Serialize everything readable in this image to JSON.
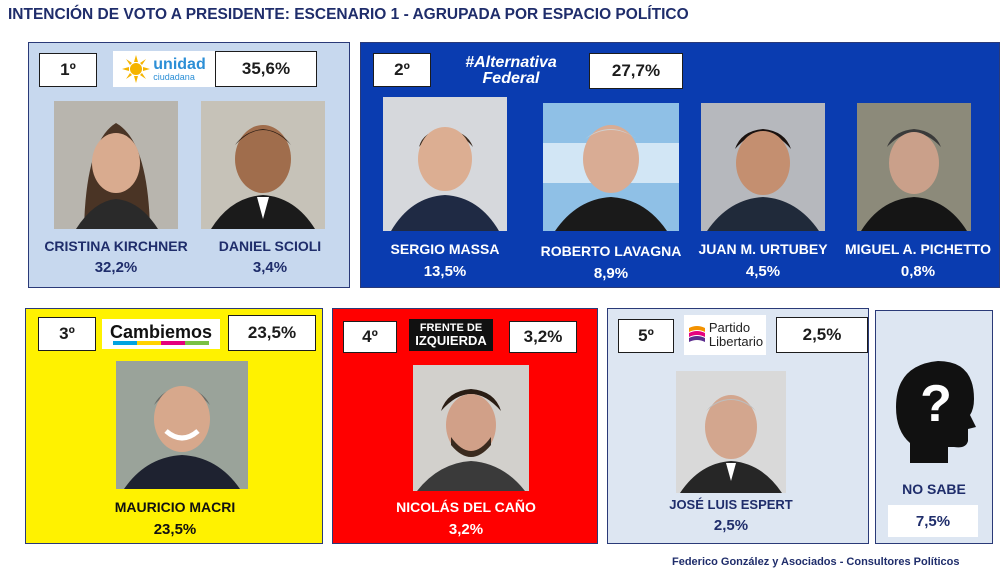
{
  "title": "INTENCIÓN DE VOTO A PRESIDENTE: ESCENARIO 1 - AGRUPADA POR ESPACIO POLÍTICO",
  "footer": "Federico González y Asociados - Consultores Políticos",
  "colors": {
    "unidad_bg": "#c7d8ee",
    "alternativa_bg": "#0a3cb0",
    "cambiemos_bg": "#fff200",
    "frente_bg": "#ff0000",
    "libertario_bg": "#dde6f2",
    "nosabe_bg": "#dde6f2"
  },
  "groups": [
    {
      "rank": "1º",
      "logo_text": "unidad",
      "logo_sub": "ciudadana",
      "logo_icon": "sun-icon",
      "percent": "35,6%"
    },
    {
      "rank": "2º",
      "logo_text": "#Alternativa",
      "logo_sub": "Federal",
      "percent": "27,7%"
    },
    {
      "rank": "3º",
      "logo_text": "Cambiemos",
      "percent": "23,5%"
    },
    {
      "rank": "4º",
      "logo_text": "FRENTE DE",
      "logo_sub": "IZQUIERDA",
      "percent": "3,2%"
    },
    {
      "rank": "5º",
      "logo_text": "Partido",
      "logo_sub": "Libertario",
      "logo_icon": "flag-icon",
      "percent": "2,5%"
    }
  ],
  "candidates": [
    {
      "name": "CRISTINA KIRCHNER",
      "pct": "32,2%"
    },
    {
      "name": "DANIEL SCIOLI",
      "pct": "3,4%"
    },
    {
      "name": "SERGIO MASSA",
      "pct": "13,5%"
    },
    {
      "name": "ROBERTO LAVAGNA",
      "pct": "8,9%"
    },
    {
      "name": "JUAN M. URTUBEY",
      "pct": "4,5%"
    },
    {
      "name": "MIGUEL A. PICHETTO",
      "pct": "0,8%"
    },
    {
      "name": "MAURICIO MACRI",
      "pct": "23,5%"
    },
    {
      "name": "NICOLÁS DEL CAÑO",
      "pct": "3,2%"
    },
    {
      "name": "JOSÉ LUIS ESPERT",
      "pct": "2,5%"
    }
  ],
  "no_sabe": {
    "label": "NO SABE",
    "pct": "7,5%",
    "icon": "question-head-icon"
  },
  "chart_data": {
    "type": "bar",
    "title": "INTENCIÓN DE VOTO A PRESIDENTE: ESCENARIO 1 - AGRUPADA POR ESPACIO POLÍTICO",
    "groups": [
      {
        "name": "Unidad Ciudadana",
        "total": 35.6,
        "candidates": [
          [
            "CRISTINA KIRCHNER",
            32.2
          ],
          [
            "DANIEL SCIOLI",
            3.4
          ]
        ]
      },
      {
        "name": "Alternativa Federal",
        "total": 27.7,
        "candidates": [
          [
            "SERGIO MASSA",
            13.5
          ],
          [
            "ROBERTO LAVAGNA",
            8.9
          ],
          [
            "JUAN M. URTUBEY",
            4.5
          ],
          [
            "MIGUEL A. PICHETTO",
            0.8
          ]
        ]
      },
      {
        "name": "Cambiemos",
        "total": 23.5,
        "candidates": [
          [
            "MAURICIO MACRI",
            23.5
          ]
        ]
      },
      {
        "name": "Frente de Izquierda",
        "total": 3.2,
        "candidates": [
          [
            "NICOLÁS DEL CAÑO",
            3.2
          ]
        ]
      },
      {
        "name": "Partido Libertario",
        "total": 2.5,
        "candidates": [
          [
            "JOSÉ LUIS ESPERT",
            2.5
          ]
        ]
      },
      {
        "name": "NO SABE",
        "total": 7.5,
        "candidates": []
      }
    ]
  }
}
